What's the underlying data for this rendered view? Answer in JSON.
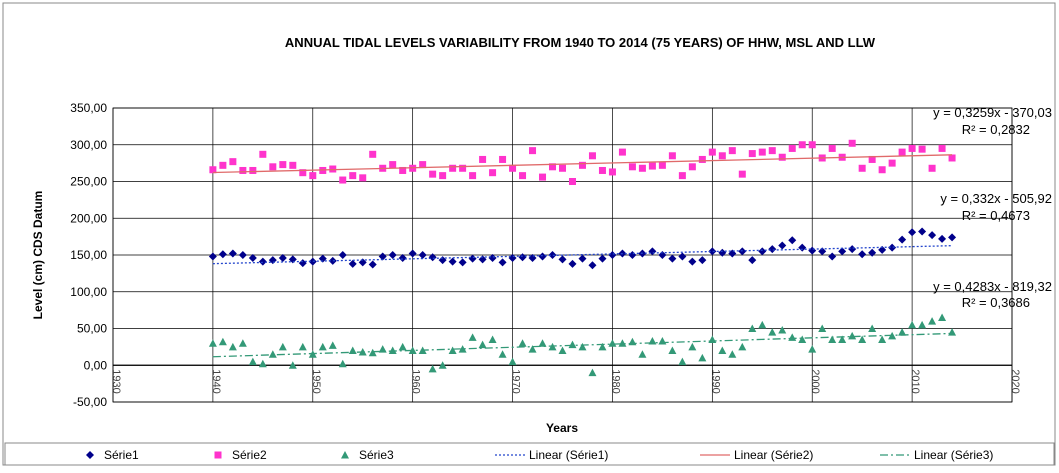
{
  "chart_data": {
    "type": "scatter",
    "title": "ANNUAL TIDAL LEVELS VARIABILITY FROM 1940 TO 2014 (75 YEARS) OF HHW, MSL AND LLW",
    "x_label": "Years",
    "y_label": "Level (cm) CDS Datum",
    "xlim": [
      1930,
      2020
    ],
    "xticks": [
      1930,
      1940,
      1950,
      1960,
      1970,
      1980,
      1990,
      2000,
      2010,
      2020
    ],
    "ylim": [
      -50,
      350
    ],
    "yticks": [
      {
        "value": -50,
        "label": "-50,00"
      },
      {
        "value": 0,
        "label": "0,00"
      },
      {
        "value": 50,
        "label": "50,00"
      },
      {
        "value": 100,
        "label": "100,00"
      },
      {
        "value": 150,
        "label": "150,00"
      },
      {
        "value": 200,
        "label": "200,00"
      },
      {
        "value": 250,
        "label": "250,00"
      },
      {
        "value": 300,
        "label": "300,00"
      },
      {
        "value": 350,
        "label": "350,00"
      }
    ],
    "grid": true,
    "x": [
      1940,
      1941,
      1942,
      1943,
      1944,
      1945,
      1946,
      1947,
      1948,
      1949,
      1950,
      1951,
      1952,
      1953,
      1954,
      1955,
      1956,
      1957,
      1958,
      1959,
      1960,
      1961,
      1962,
      1963,
      1964,
      1965,
      1966,
      1967,
      1968,
      1969,
      1970,
      1971,
      1972,
      1973,
      1974,
      1975,
      1976,
      1977,
      1978,
      1979,
      1980,
      1981,
      1982,
      1983,
      1984,
      1985,
      1986,
      1987,
      1988,
      1989,
      1990,
      1991,
      1992,
      1993,
      1994,
      1995,
      1996,
      1997,
      1998,
      1999,
      2000,
      2001,
      2002,
      2003,
      2004,
      2005,
      2006,
      2007,
      2008,
      2009,
      2010,
      2011,
      2012,
      2013,
      2014
    ],
    "series": [
      {
        "name": "Série1",
        "color": "#00008b",
        "marker": "diamond",
        "values": [
          148,
          151,
          152,
          150,
          146,
          141,
          143,
          146,
          144,
          139,
          141,
          145,
          142,
          150,
          138,
          140,
          137,
          148,
          150,
          146,
          152,
          150,
          147,
          143,
          141,
          140,
          145,
          144,
          146,
          140,
          146,
          147,
          146,
          148,
          150,
          144,
          138,
          145,
          136,
          145,
          150,
          152,
          150,
          152,
          155,
          150,
          145,
          148,
          141,
          143,
          155,
          153,
          152,
          155,
          143,
          155,
          158,
          163,
          170,
          160,
          156,
          155,
          148,
          155,
          158,
          151,
          153,
          157,
          160,
          171,
          181,
          182,
          177,
          172,
          174
        ]
      },
      {
        "name": "Série2",
        "color": "#ff33cc",
        "marker": "square",
        "values": [
          266,
          272,
          277,
          265,
          265,
          287,
          270,
          273,
          272,
          262,
          258,
          265,
          267,
          252,
          258,
          255,
          287,
          268,
          273,
          265,
          268,
          273,
          260,
          258,
          268,
          268,
          258,
          280,
          262,
          280,
          268,
          258,
          292,
          256,
          270,
          268,
          250,
          272,
          285,
          265,
          263,
          290,
          270,
          268,
          271,
          272,
          285,
          258,
          270,
          280,
          290,
          285,
          292,
          260,
          288,
          290,
          292,
          283,
          295,
          300,
          300,
          282,
          295,
          283,
          302,
          268,
          280,
          266,
          275,
          290,
          295,
          294,
          268,
          295,
          282
        ]
      },
      {
        "name": "Série3",
        "color": "#339977",
        "marker": "triangle",
        "values": [
          30,
          32,
          25,
          30,
          5,
          2,
          15,
          25,
          0,
          25,
          15,
          25,
          27,
          2,
          20,
          18,
          17,
          22,
          20,
          25,
          20,
          20,
          -5,
          0,
          20,
          22,
          38,
          28,
          35,
          15,
          5,
          30,
          22,
          30,
          25,
          20,
          28,
          25,
          -10,
          25,
          30,
          30,
          32,
          15,
          33,
          33,
          20,
          5,
          25,
          10,
          35,
          20,
          15,
          25,
          50,
          55,
          45,
          48,
          38,
          35,
          22,
          50,
          35,
          35,
          40,
          35,
          50,
          35,
          40,
          45,
          55,
          55,
          60,
          65,
          45
        ]
      },
      {
        "name": "Linear (Série1)",
        "color": "#2244cc",
        "style": "dotted",
        "x": [
          1940,
          2014
        ],
        "values": [
          138.2,
          162.7
        ]
      },
      {
        "name": "Linear (Série2)",
        "color": "#e06a6a",
        "style": "solid",
        "x": [
          1940,
          2014
        ],
        "values": [
          262.2,
          286.3
        ]
      },
      {
        "name": "Linear (Série3)",
        "color": "#339977",
        "style": "dashdot",
        "x": [
          1940,
          2014
        ],
        "values": [
          11.6,
          43.3
        ]
      }
    ],
    "annotations": [
      {
        "equation": "y = 0,3259x - 370,03",
        "r2": "R² = 0,2832"
      },
      {
        "equation": "y = 0,332x - 505,92",
        "r2": "R² = 0,4673"
      },
      {
        "equation": "y = 0,4283x - 819,32",
        "r2": "R² = 0,3686"
      }
    ]
  }
}
